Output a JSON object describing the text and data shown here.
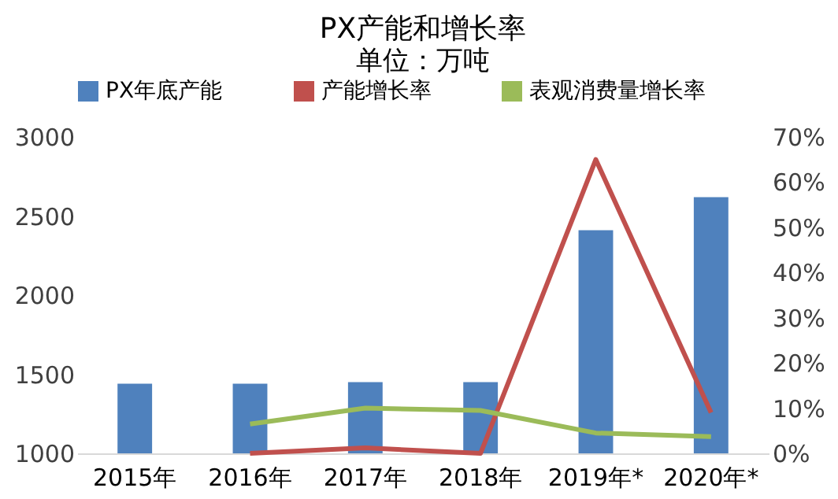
{
  "chart_data": {
    "type": "bar",
    "title": "PX产能和增长率",
    "annotations": [
      "单位：万吨"
    ],
    "categories": [
      "2015年",
      "2016年",
      "2017年",
      "2018年",
      "2019年*",
      "2020年*"
    ],
    "series": [
      {
        "name": "PX年底产能",
        "color": "#4f81bd",
        "values": [
          1440,
          1440,
          1450,
          1450,
          2410,
          2620
        ]
      },
      {
        "name": "产能增长率",
        "type": "line",
        "axis": "y2",
        "color": "#c0504d",
        "values": [
          null,
          0,
          1.2,
          0,
          65,
          9
        ]
      },
      {
        "name": "表观消费量增长率",
        "type": "line",
        "axis": "y2",
        "color": "#9bbb59",
        "values": [
          null,
          6.5,
          10,
          9.5,
          4.5,
          3.7
        ]
      }
    ],
    "ylim": [
      1000,
      3000
    ],
    "yticks": [
      1000,
      1500,
      2000,
      2500,
      3000
    ],
    "y2lim": [
      0,
      70
    ],
    "y2ticks": [
      {
        "value": 0,
        "label": "0%"
      },
      {
        "value": 10,
        "label": "10%"
      },
      {
        "value": 20,
        "label": "20%"
      },
      {
        "value": 30,
        "label": "30%"
      },
      {
        "value": 40,
        "label": "40%"
      },
      {
        "value": 50,
        "label": "50%"
      },
      {
        "value": 60,
        "label": "60%"
      },
      {
        "value": 70,
        "label": "70%"
      }
    ],
    "grid": false,
    "legend": "top",
    "marker": "none",
    "line_style": "solid"
  }
}
